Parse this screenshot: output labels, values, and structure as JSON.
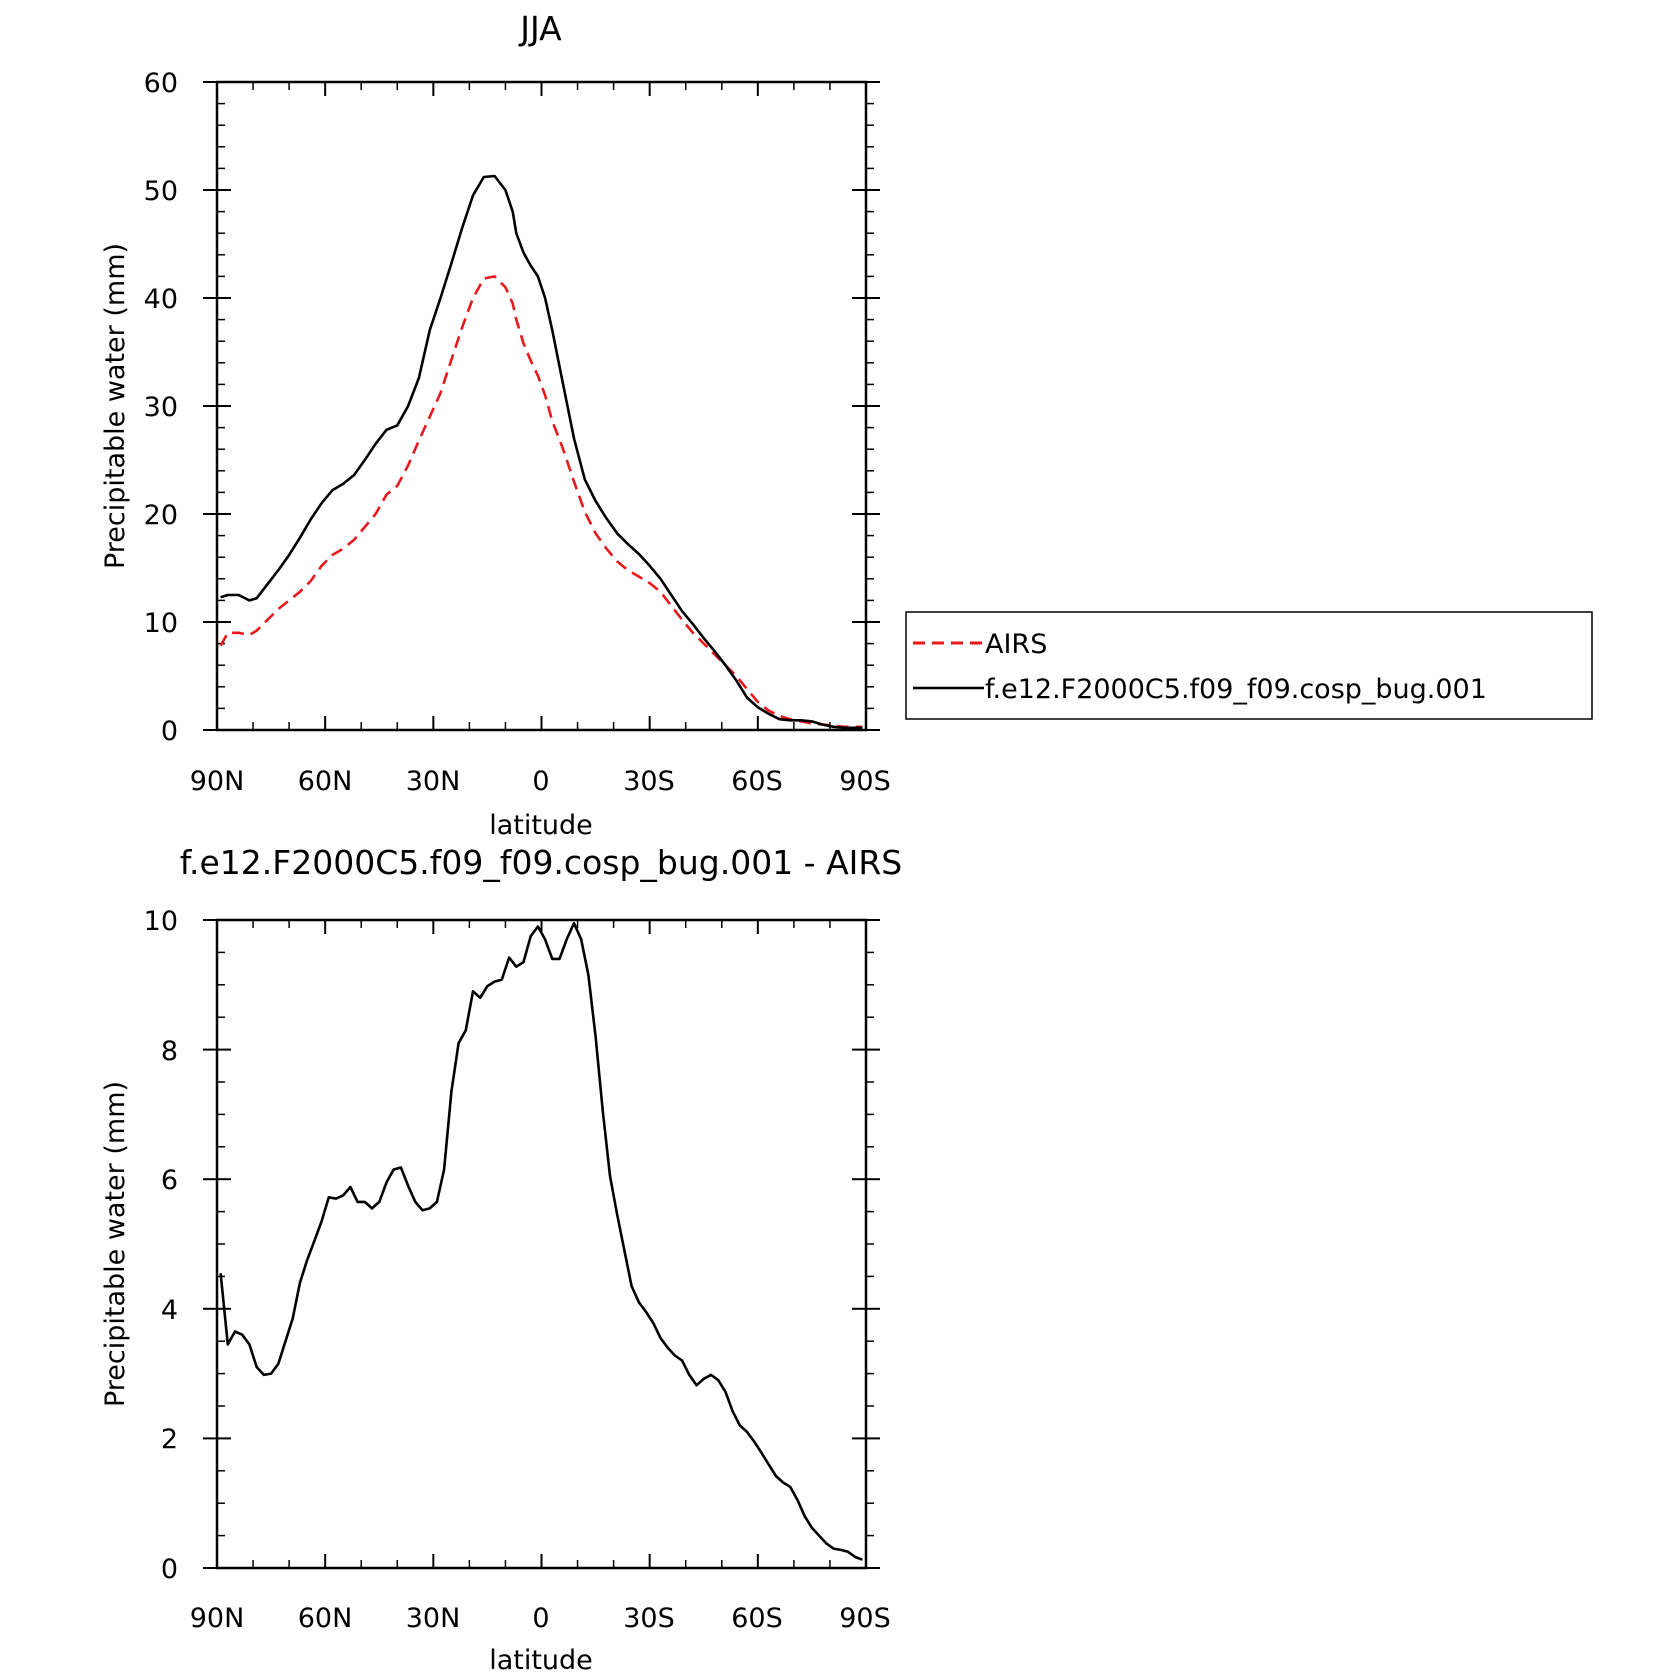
{
  "chart_data": [
    {
      "type": "line",
      "title": "JJA",
      "xlabel": "latitude",
      "ylabel": "Precipitable water (mm)",
      "xlim": [
        90,
        -90
      ],
      "ylim": [
        0,
        60
      ],
      "x_ticks": [
        90,
        60,
        30,
        0,
        -30,
        -60,
        -90
      ],
      "x_tick_labels": [
        "90N",
        "60N",
        "30N",
        "0",
        "30S",
        "60S",
        "90S"
      ],
      "y_ticks": [
        0,
        10,
        20,
        30,
        40,
        50,
        60
      ],
      "y_tick_labels": [
        "0",
        "10",
        "20",
        "30",
        "40",
        "50",
        "60"
      ],
      "legend": {
        "placement": "right",
        "entries": [
          "AIRS",
          "f.e12.F2000C5.f09_f09.cosp_bug.001"
        ]
      },
      "series": [
        {
          "name": "AIRS",
          "color": "#e8191c",
          "dash": "dashed",
          "x": [
            89,
            87,
            84,
            81,
            79,
            76,
            73,
            70,
            67,
            64,
            61,
            58,
            55,
            52,
            49,
            46,
            43,
            40,
            37,
            34,
            31,
            28,
            25,
            22,
            19,
            16,
            13,
            10,
            8,
            7,
            5,
            3,
            1,
            -1,
            -3,
            -6,
            -9,
            -12,
            -15,
            -18,
            -21,
            -24,
            -27,
            -30,
            -33,
            -36,
            -39,
            -42,
            -45,
            -48,
            -51,
            -54,
            -57,
            -60,
            -63,
            -66,
            -69,
            -72,
            -75,
            -78,
            -81,
            -84,
            -87,
            -89
          ],
          "y": [
            7.8,
            9.0,
            9.0,
            8.8,
            9.2,
            10.2,
            11.2,
            12.0,
            12.8,
            13.8,
            15.2,
            16.2,
            16.8,
            17.6,
            18.8,
            20.0,
            21.8,
            22.6,
            24.5,
            26.8,
            29.0,
            31.2,
            34.3,
            37.3,
            40.0,
            41.8,
            42.0,
            41.0,
            39.5,
            38.0,
            35.8,
            34.2,
            32.8,
            31.0,
            28.6,
            26.0,
            23.0,
            20.2,
            18.2,
            16.8,
            15.6,
            14.8,
            14.2,
            13.6,
            12.8,
            11.5,
            10.2,
            9.0,
            8.0,
            7.0,
            6.0,
            5.0,
            3.8,
            2.6,
            1.8,
            1.3,
            1.0,
            0.8,
            0.6,
            0.5,
            0.4,
            0.3,
            0.3,
            0.3
          ]
        },
        {
          "name": "f.e12.F2000C5.f09_f09.cosp_bug.001",
          "color": "#000000",
          "dash": "solid",
          "x": [
            89,
            87,
            84,
            81,
            79,
            76,
            73,
            70,
            67,
            64,
            61,
            58,
            55,
            52,
            49,
            46,
            43,
            40,
            37,
            34,
            31,
            28,
            25,
            22,
            19,
            16,
            13,
            10,
            8,
            7,
            5,
            3,
            1,
            -1,
            -3,
            -6,
            -9,
            -12,
            -15,
            -18,
            -21,
            -24,
            -27,
            -30,
            -33,
            -36,
            -39,
            -42,
            -45,
            -48,
            -51,
            -54,
            -57,
            -60,
            -63,
            -66,
            -69,
            -72,
            -75,
            -78,
            -81,
            -84,
            -87,
            -89
          ],
          "y": [
            12.3,
            12.5,
            12.5,
            12.0,
            12.2,
            13.5,
            14.8,
            16.2,
            17.8,
            19.5,
            21.0,
            22.2,
            22.8,
            23.6,
            25.0,
            26.5,
            27.8,
            28.2,
            30.0,
            32.6,
            37.0,
            40.0,
            43.2,
            46.5,
            49.5,
            51.2,
            51.3,
            50.0,
            48.0,
            46.0,
            44.2,
            43.0,
            42.0,
            40.0,
            37.0,
            32.0,
            27.0,
            23.2,
            21.2,
            19.6,
            18.2,
            17.2,
            16.3,
            15.2,
            14.0,
            12.5,
            11.0,
            9.8,
            8.5,
            7.3,
            6.0,
            4.6,
            3.0,
            2.1,
            1.5,
            1.0,
            0.9,
            0.9,
            0.8,
            0.5,
            0.3,
            0.2,
            0.2,
            0.2
          ]
        }
      ]
    },
    {
      "type": "line",
      "title": "f.e12.F2000C5.f09_f09.cosp_bug.001 - AIRS",
      "xlabel": "latitude",
      "ylabel": "Precipitable water (mm)",
      "xlim": [
        90,
        -90
      ],
      "ylim": [
        0,
        10
      ],
      "x_ticks": [
        90,
        60,
        30,
        0,
        -30,
        -60,
        -90
      ],
      "x_tick_labels": [
        "90N",
        "60N",
        "30N",
        "0",
        "30S",
        "60S",
        "90S"
      ],
      "y_ticks": [
        0,
        2,
        4,
        6,
        8,
        10
      ],
      "y_tick_labels": [
        "0",
        "2",
        "4",
        "6",
        "8",
        "10"
      ],
      "series": [
        {
          "name": "f.e12.F2000C5.f09_f09.cosp_bug.001 - AIRS",
          "color": "#000000",
          "dash": "solid",
          "x": [
            89,
            87,
            85,
            83,
            81,
            79,
            77,
            75,
            73,
            71,
            69,
            67,
            65,
            63,
            61,
            59,
            57,
            55,
            53,
            51,
            49,
            47,
            45,
            43,
            41,
            39,
            37,
            35,
            33,
            31,
            29,
            27,
            25,
            23,
            21,
            19,
            17,
            15,
            13,
            11,
            9,
            7,
            5,
            3,
            1,
            -1,
            -3,
            -5,
            -7,
            -9,
            -11,
            -13,
            -15,
            -17,
            -19,
            -21,
            -23,
            -25,
            -27,
            -29,
            -31,
            -33,
            -35,
            -37,
            -39,
            -41,
            -43,
            -45,
            -47,
            -49,
            -51,
            -53,
            -55,
            -57,
            -59,
            -61,
            -63,
            -65,
            -67,
            -69,
            -71,
            -73,
            -75,
            -77,
            -79,
            -81,
            -83,
            -85,
            -87,
            -89
          ],
          "y": [
            4.55,
            3.45,
            3.65,
            3.6,
            3.45,
            3.1,
            2.98,
            3.0,
            3.15,
            3.5,
            3.85,
            4.4,
            4.75,
            5.05,
            5.35,
            5.72,
            5.7,
            5.75,
            5.88,
            5.65,
            5.65,
            5.55,
            5.65,
            5.95,
            6.15,
            6.18,
            5.9,
            5.65,
            5.52,
            5.55,
            5.65,
            6.15,
            7.35,
            8.1,
            8.3,
            8.9,
            8.8,
            8.98,
            9.05,
            9.08,
            9.42,
            9.28,
            9.35,
            9.75,
            9.9,
            9.7,
            9.4,
            9.4,
            9.7,
            9.95,
            9.7,
            9.15,
            8.2,
            7.05,
            6.05,
            5.45,
            4.9,
            4.35,
            4.1,
            3.95,
            3.78,
            3.55,
            3.4,
            3.28,
            3.2,
            2.98,
            2.82,
            2.92,
            2.98,
            2.9,
            2.72,
            2.42,
            2.2,
            2.1,
            1.95,
            1.78,
            1.6,
            1.42,
            1.32,
            1.25,
            1.05,
            0.8,
            0.62,
            0.5,
            0.38,
            0.3,
            0.28,
            0.25,
            0.17,
            0.13
          ]
        }
      ]
    }
  ]
}
